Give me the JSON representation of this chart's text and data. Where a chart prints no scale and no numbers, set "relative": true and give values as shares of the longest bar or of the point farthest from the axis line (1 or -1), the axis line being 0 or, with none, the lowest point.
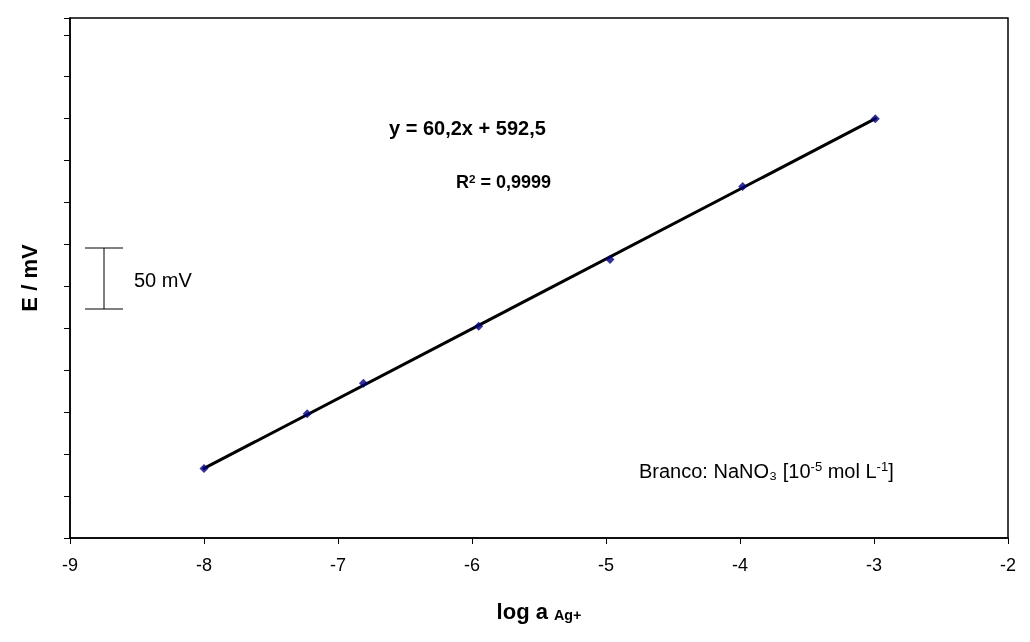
{
  "chart_data": {
    "type": "scatter",
    "xlabel": "log a $_{Ag+}$",
    "ylabel": "E / mV",
    "relative": true,
    "xlim": [
      -9,
      -2
    ],
    "xticks": [
      -9,
      -8,
      -7,
      -6,
      -5,
      -4,
      -3,
      -2
    ],
    "tick_labels": "x",
    "marker": "diamond",
    "annotations": [
      "y = 60,2x + 592,5",
      "R$^{2}$ = 0,9999",
      "50 mV",
      "Branco: NaNO₃ [10$^{-5}$ mol L$^{-1}$]"
    ],
    "series": [
      {
        "type": "scatter",
        "color": "#000080",
        "x": [
          -8,
          -7.23,
          -6.81,
          -5.95,
          -4.97,
          -3.98,
          -2.99
        ],
        "values": [
          0.166,
          0.296,
          0.369,
          0.505,
          0.664,
          0.838,
          1
        ]
      },
      {
        "type": "line",
        "color": "#000000",
        "x": [
          -8,
          -2.99
        ],
        "values": [
          0.166,
          1
        ],
        "marker": "none",
        "line_style": "solid"
      }
    ]
  }
}
